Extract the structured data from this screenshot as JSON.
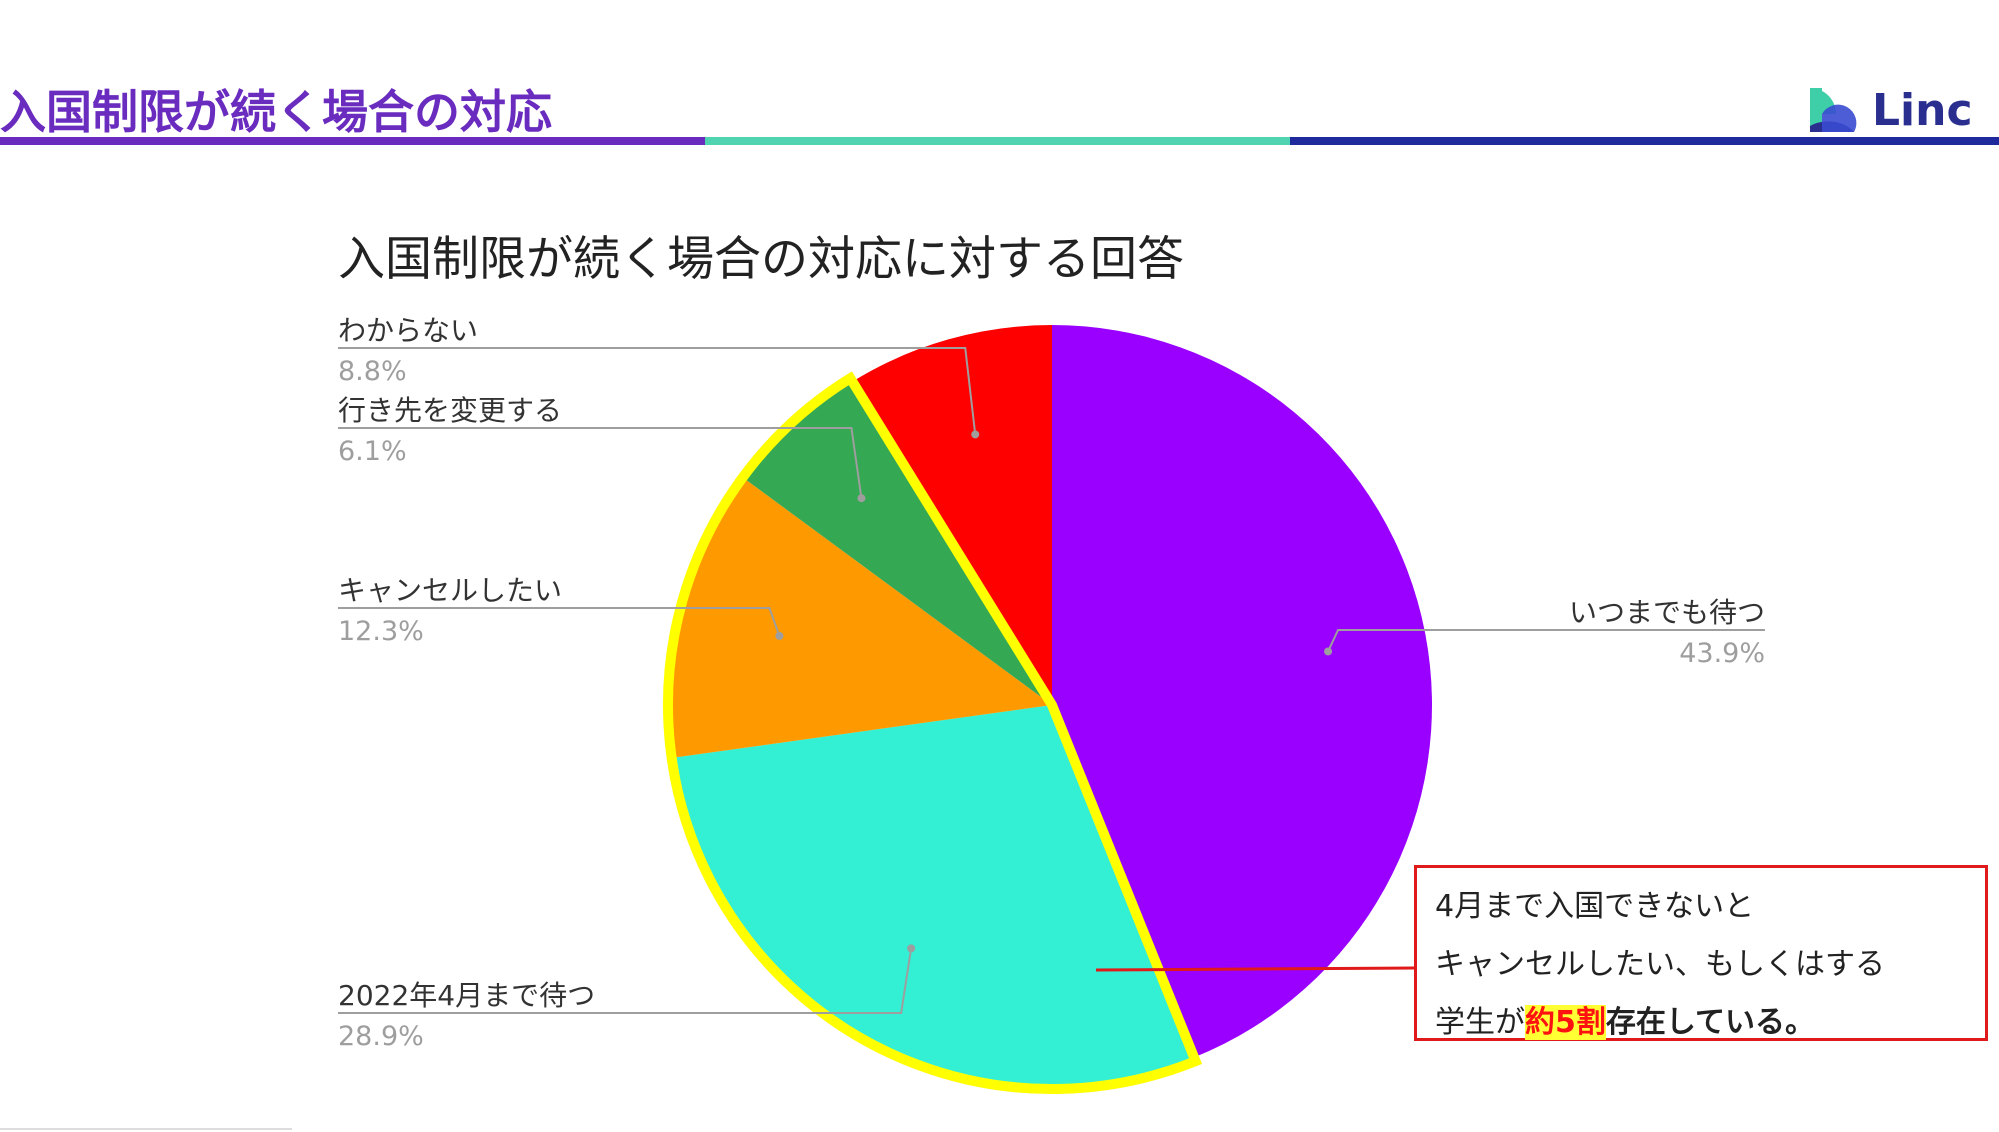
{
  "slide": {
    "title": "入国制限が続く場合の対応",
    "logo_text": "Linc"
  },
  "colors": {
    "title": "#6a2bbf",
    "bar_purple": "#6a2bbf",
    "bar_teal": "#4fd3b0",
    "bar_navy": "#1f2b9c",
    "highlight_outline": "#ffff00",
    "callout_border": "#e01a1a"
  },
  "chart_data": {
    "type": "pie",
    "title": "入国制限が続く場合の対応に対する回答",
    "slices": [
      {
        "label": "いつまでも待つ",
        "value": 43.9,
        "value_label": "43.9%",
        "color": "#9900ff"
      },
      {
        "label": "2022年4月まで待つ",
        "value": 28.9,
        "value_label": "28.9%",
        "color": "#33efd4"
      },
      {
        "label": "キャンセルしたい",
        "value": 12.3,
        "value_label": "12.3%",
        "color": "#ff9900"
      },
      {
        "label": "行き先を変更する",
        "value": 6.1,
        "value_label": "6.1%",
        "color": "#34a853"
      },
      {
        "label": "わからない",
        "value": 8.8,
        "value_label": "8.8%",
        "color": "#ff0000"
      }
    ],
    "highlighted_slices": [
      "2022年4月まで待つ",
      "キャンセルしたい",
      "行き先を変更する"
    ]
  },
  "callout": {
    "line1": "4月まで入国できないと",
    "line2": "キャンセルしたい、もしくはする",
    "line3_prefix": "学生が",
    "line3_highlight": "約5割",
    "line3_suffix": "存在している。"
  }
}
